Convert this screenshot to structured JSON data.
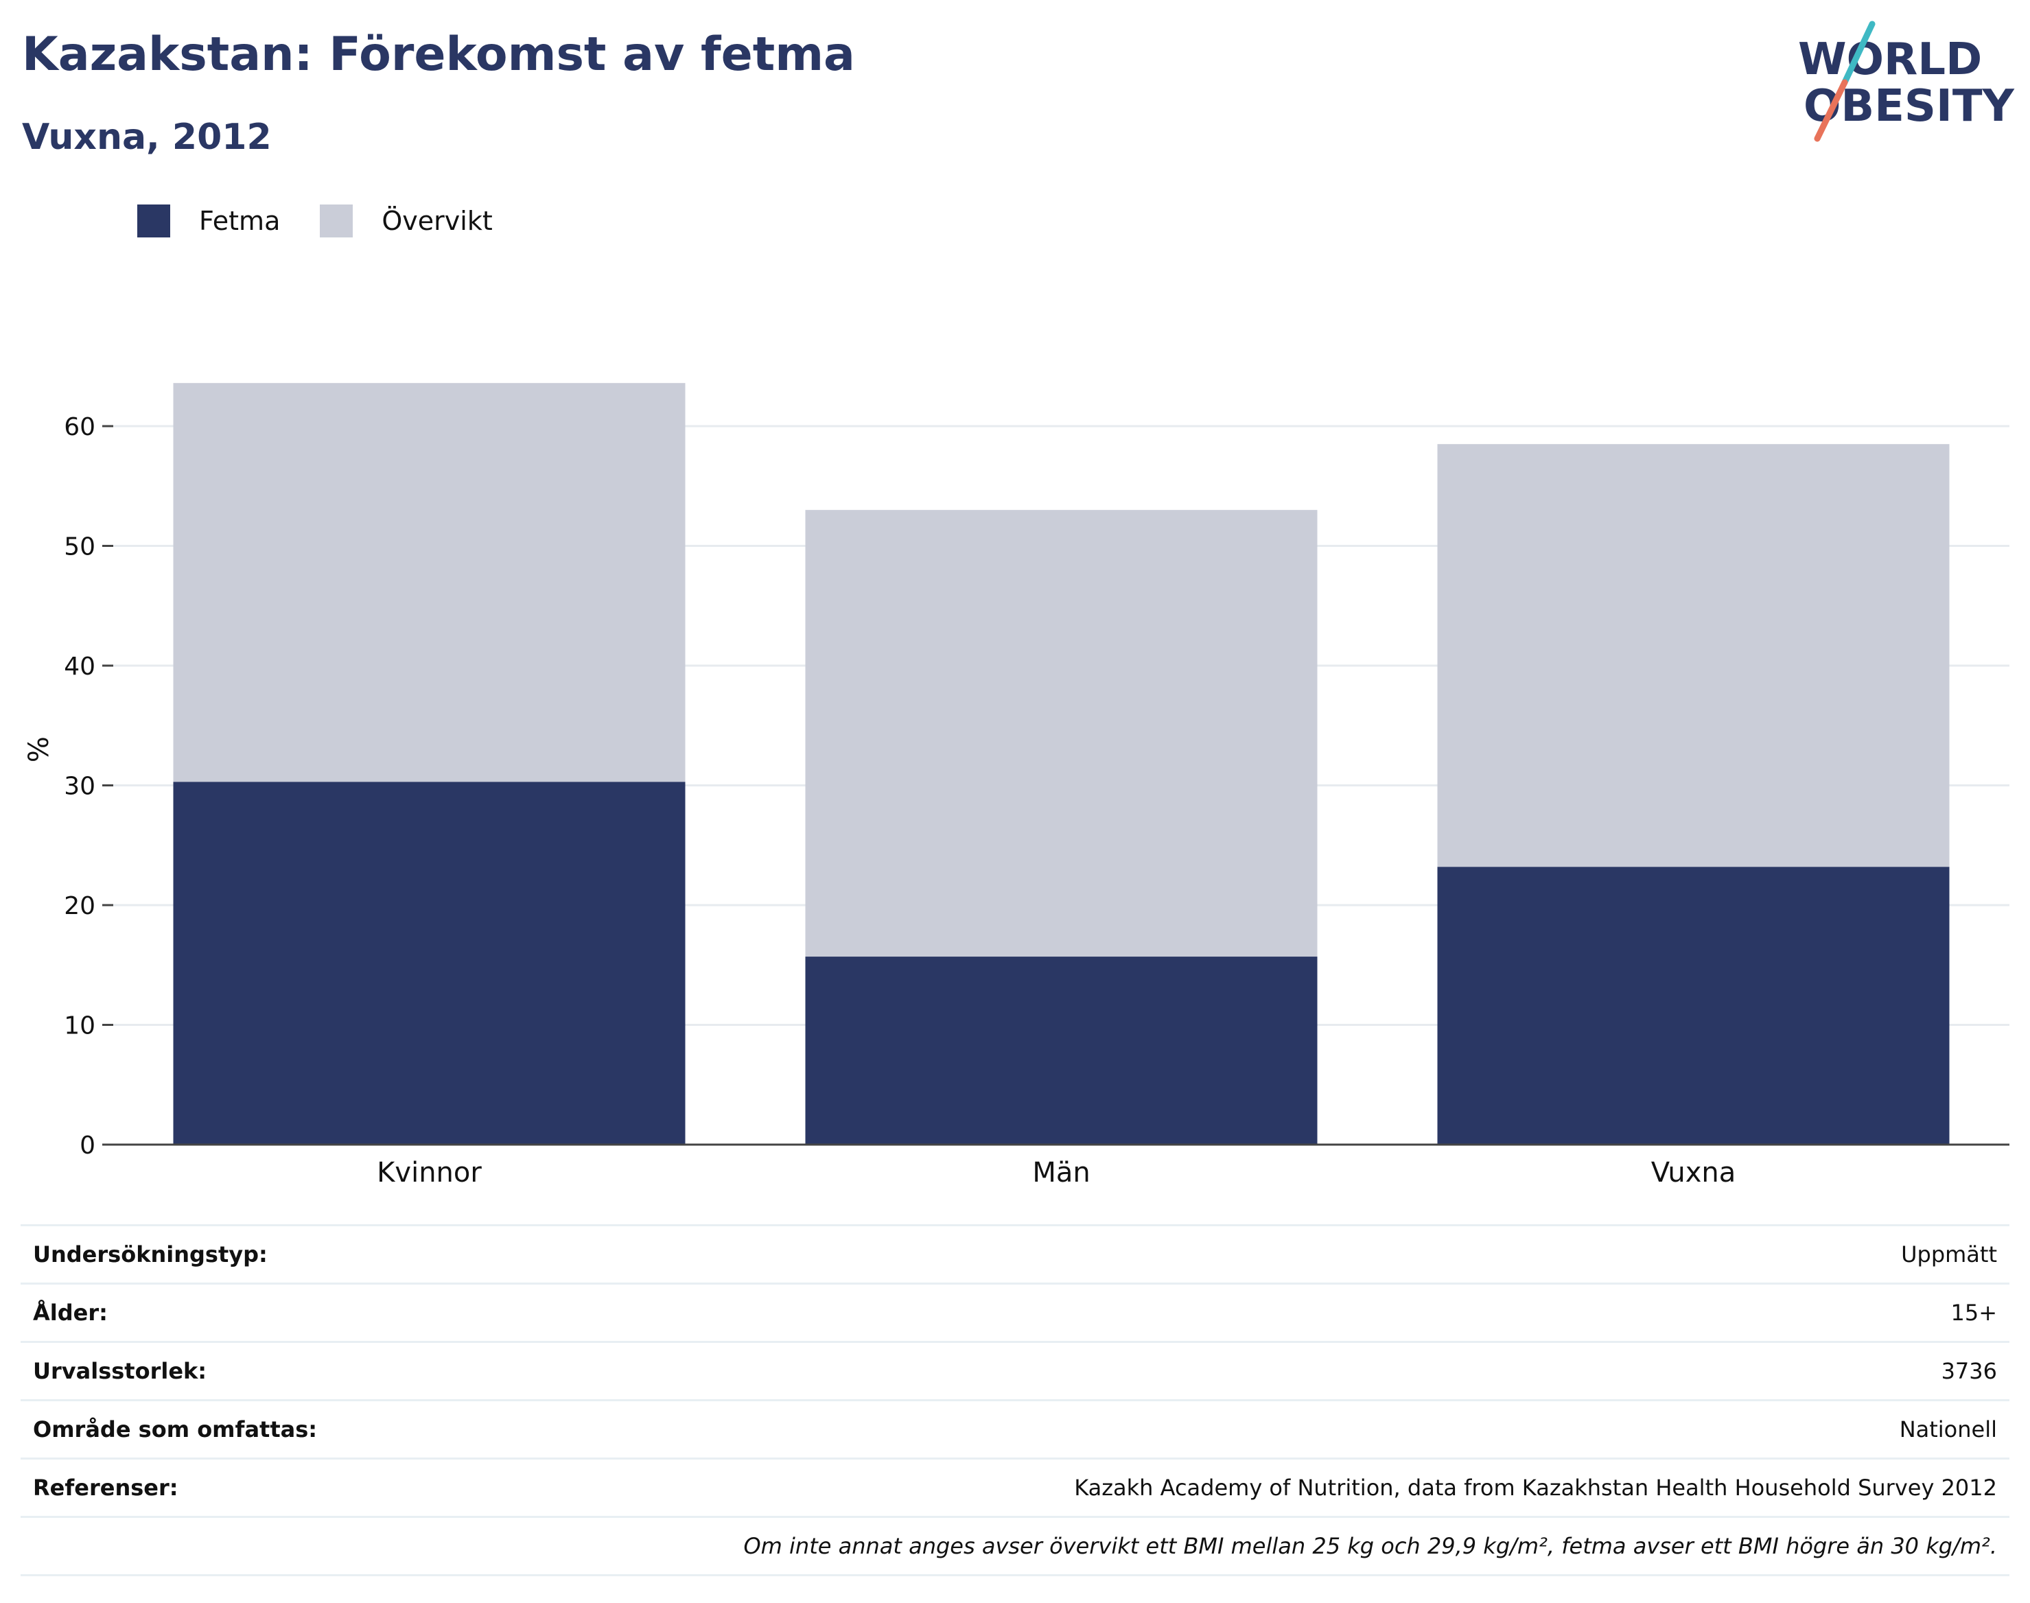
{
  "header": {
    "title": "Kazakstan: Förekomst av fetma",
    "subtitle": "Vuxna, 2012"
  },
  "logo": {
    "line1": "WORLD",
    "line2": "OBESITY",
    "colors": {
      "text": "#2a3764",
      "slash_top": "#3fb9c4",
      "slash_bottom": "#e8735a"
    }
  },
  "colors": {
    "obesity": "#2a3764",
    "overweight": "#cacdd8",
    "grid": "#e7ebef",
    "axis": "#444444"
  },
  "chart_data": {
    "type": "bar",
    "stacked": true,
    "categories": [
      "Kvinnor",
      "Män",
      "Vuxna"
    ],
    "series": [
      {
        "name": "Fetma",
        "values": [
          30.3,
          15.7,
          23.2
        ]
      },
      {
        "name": "Övervikt",
        "values": [
          33.3,
          37.3,
          35.3
        ]
      }
    ],
    "ylabel": "%",
    "ylim": [
      0,
      65
    ],
    "yticks": [
      0,
      10,
      20,
      30,
      40,
      50,
      60
    ],
    "grid": true,
    "legend_position": "top-left"
  },
  "info": {
    "rows": [
      {
        "key": "Undersökningstyp:",
        "value": "Uppmätt"
      },
      {
        "key": "Ålder:",
        "value": "15+"
      },
      {
        "key": "Urvalsstorlek:",
        "value": "3736"
      },
      {
        "key": "Område som omfattas:",
        "value": "Nationell"
      },
      {
        "key": "Referenser:",
        "value": "Kazakh Academy of Nutrition, data from Kazakhstan Health Household Survey 2012"
      }
    ],
    "note": "Om inte annat anges avser övervikt ett BMI mellan 25 kg och 29,9 kg/m², fetma avser ett BMI högre än 30 kg/m²."
  }
}
